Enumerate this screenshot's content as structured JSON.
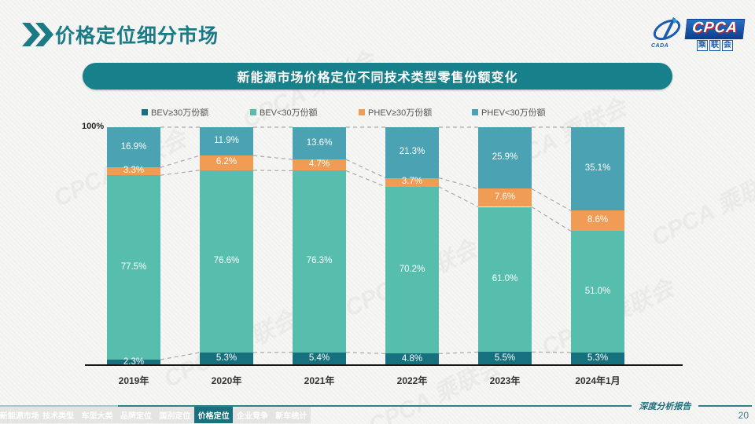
{
  "page": {
    "title": "价格定位细分市场",
    "page_number": "20",
    "report_label": "深度分析报告",
    "watermark": "CPCA 乘联会"
  },
  "logo": {
    "cpca": "CPCA",
    "sub_cn": "乘联会",
    "swoosh_label": "CADA"
  },
  "footer_tabs": [
    {
      "label": "新能源市场",
      "active": false
    },
    {
      "label": "技术类型",
      "active": false
    },
    {
      "label": "车型大类",
      "active": false
    },
    {
      "label": "品牌定位",
      "active": false
    },
    {
      "label": "国别定位",
      "active": false
    },
    {
      "label": "价格定位",
      "active": true
    },
    {
      "label": "企业竞争",
      "active": false
    },
    {
      "label": "新车统计",
      "active": false
    }
  ],
  "colors": {
    "accent_teal": "#1a7b87",
    "pill_bg": "#17808b",
    "bev_ge30": "#17707e",
    "bev_lt30": "#57beae",
    "phev_ge30": "#f09c55",
    "phev_lt30": "#4aa2b2"
  },
  "chart_data": {
    "type": "bar",
    "subtype": "stacked-100",
    "title": "新能源市场价格定位不同技术类型零售份额变化",
    "y_axis_label": "100%",
    "ylim": [
      0,
      100
    ],
    "value_suffix": "%",
    "legend_position": "top",
    "grid": false,
    "categories": [
      "2019年",
      "2020年",
      "2021年",
      "2022年",
      "2023年",
      "2024年1月"
    ],
    "series": [
      {
        "name": "BEV≥30万份额",
        "color": "#17707e",
        "values": [
          2.3,
          5.3,
          5.4,
          4.8,
          5.5,
          5.3
        ]
      },
      {
        "name": "BEV<30万份额",
        "color": "#57beae",
        "values": [
          77.5,
          76.6,
          76.3,
          70.2,
          61.0,
          51.0
        ]
      },
      {
        "name": "PHEV≥30万份额",
        "color": "#f09c55",
        "values": [
          3.3,
          6.2,
          4.7,
          3.7,
          7.6,
          8.6
        ]
      },
      {
        "name": "PHEV<30万份额",
        "color": "#4aa2b2",
        "values": [
          16.9,
          11.9,
          13.6,
          21.3,
          25.9,
          35.1
        ]
      }
    ]
  }
}
